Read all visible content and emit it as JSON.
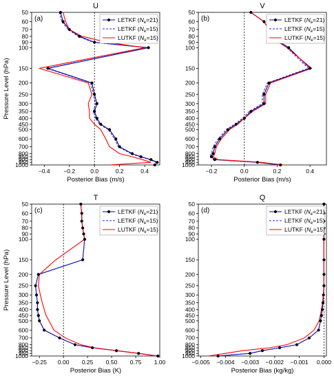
{
  "chart_data": [
    {
      "type": "line",
      "panel": "(a)",
      "title": "U",
      "xlabel": "Posterior Bias (m/s)",
      "ylabel": "Pressure Level (hPa)",
      "xlim": [
        -0.5,
        0.52
      ],
      "xticks": [
        -0.4,
        -0.2,
        0.0,
        0.2,
        0.4
      ],
      "xtick_labels": [
        "−0.4",
        "−0.2",
        "0.0",
        "0.2",
        "0.4"
      ],
      "y": [
        50,
        60,
        70,
        80,
        90,
        100,
        150,
        200,
        250,
        300,
        350,
        400,
        450,
        500,
        600,
        700,
        800,
        850,
        900,
        950,
        1000
      ],
      "ytick_labels": [
        "50",
        "60",
        "70",
        "80",
        "90",
        "100",
        "150",
        "200",
        "250",
        "300",
        "350",
        "400",
        "450",
        "500",
        "600",
        "700",
        "800",
        "850",
        "900",
        "950",
        "1000"
      ],
      "ylim": [
        50,
        1000
      ],
      "y_inverted": true,
      "zero_line": true,
      "legend_loc": "top-right",
      "series": [
        {
          "name": "LETKF (N_e=21)",
          "label_main": "LETKF (",
          "label_sub": "e",
          "label_rest": "=21)",
          "color": "#000080",
          "style": "solid",
          "marker": true,
          "values": [
            -0.27,
            -0.25,
            -0.2,
            -0.12,
            0.0,
            0.43,
            -0.37,
            -0.02,
            0.0,
            0.02,
            0.0,
            0.02,
            0.05,
            0.12,
            0.17,
            0.2,
            0.3,
            0.37,
            0.45,
            0.5,
            0.48
          ]
        },
        {
          "name": "LETKF (N_e=15)",
          "label_main": "LETKF (",
          "label_sub": "e",
          "label_rest": "=15)",
          "color": "#2222ee",
          "style": "dashed",
          "marker": false,
          "values": [
            -0.28,
            -0.26,
            -0.21,
            -0.13,
            -0.01,
            0.42,
            -0.38,
            -0.03,
            -0.01,
            0.01,
            -0.01,
            0.01,
            0.04,
            0.11,
            0.16,
            0.19,
            0.29,
            0.36,
            0.44,
            0.49,
            0.47
          ]
        },
        {
          "name": "LUTKF (N_e=15)",
          "label_main": "LUTKF (",
          "label_sub": "e",
          "label_rest": "=15)",
          "color": "#ff0000",
          "style": "solid",
          "marker": false,
          "values": [
            -0.25,
            -0.23,
            -0.2,
            -0.1,
            0.1,
            0.4,
            -0.44,
            -0.05,
            -0.02,
            -0.05,
            -0.04,
            -0.04,
            0.0,
            0.05,
            0.09,
            0.12,
            0.2,
            0.3,
            0.38,
            0.45,
            0.12
          ]
        }
      ]
    },
    {
      "type": "line",
      "panel": "(b)",
      "title": "V",
      "xlabel": "Posterior Bias (m/s)",
      "ylabel": "",
      "xlim": [
        -0.28,
        0.5
      ],
      "xticks": [
        -0.2,
        0.0,
        0.2,
        0.4
      ],
      "xtick_labels": [
        "−0.2",
        "0.0",
        "0.2",
        "0.4"
      ],
      "y": [
        50,
        60,
        70,
        80,
        90,
        100,
        150,
        200,
        250,
        300,
        350,
        400,
        450,
        500,
        600,
        700,
        800,
        850,
        900,
        950,
        1000
      ],
      "ytick_labels": [
        "50",
        "60",
        "70",
        "80",
        "90",
        "100",
        "150",
        "200",
        "250",
        "300",
        "350",
        "400",
        "450",
        "500",
        "600",
        "700",
        "800",
        "850",
        "900",
        "950",
        "1000"
      ],
      "ylim": [
        50,
        1000
      ],
      "y_inverted": true,
      "zero_line": true,
      "legend_loc": "top-right",
      "series": [
        {
          "name": "LETKF (N_e=21)",
          "label_main": "LETKF (",
          "label_sub": "e",
          "label_rest": "=21)",
          "color": "#000080",
          "style": "solid",
          "marker": true,
          "values": [
            0.04,
            0.12,
            0.15,
            0.2,
            0.22,
            0.27,
            0.4,
            0.15,
            0.12,
            0.12,
            0.04,
            0.0,
            -0.05,
            -0.1,
            -0.15,
            -0.18,
            -0.19,
            -0.2,
            -0.18,
            0.08,
            0.22
          ]
        },
        {
          "name": "LETKF (N_e=15)",
          "label_main": "LETKF (",
          "label_sub": "e",
          "label_rest": "=15)",
          "color": "#2222ee",
          "style": "dashed",
          "marker": false,
          "values": [
            0.04,
            0.12,
            0.15,
            0.2,
            0.22,
            0.26,
            0.39,
            0.14,
            0.11,
            0.11,
            0.03,
            -0.01,
            -0.06,
            -0.11,
            -0.16,
            -0.19,
            -0.2,
            -0.21,
            -0.19,
            0.07,
            0.21
          ]
        },
        {
          "name": "LUTKF (N_e=15)",
          "label_main": "LUTKF (",
          "label_sub": "e",
          "label_rest": "=15)",
          "color": "#ff0000",
          "style": "solid",
          "marker": false,
          "values": [
            0.04,
            0.12,
            0.15,
            0.19,
            0.21,
            0.26,
            0.41,
            0.16,
            0.13,
            0.13,
            0.05,
            0.0,
            -0.04,
            -0.09,
            -0.14,
            -0.17,
            -0.18,
            -0.19,
            -0.16,
            0.1,
            0.24
          ]
        }
      ]
    },
    {
      "type": "line",
      "panel": "(c)",
      "title": "T",
      "xlabel": "Posterior Bias (K)",
      "ylabel": "Pressure Level (hPa)",
      "xlim": [
        -0.33,
        1.0
      ],
      "xticks": [
        -0.25,
        0.0,
        0.25,
        0.5,
        0.75,
        1.0
      ],
      "xtick_labels": [
        "−0.25",
        "0.00",
        "0.25",
        "0.50",
        "0.75",
        "1.00"
      ],
      "y": [
        50,
        60,
        70,
        80,
        90,
        100,
        150,
        200,
        250,
        300,
        350,
        400,
        450,
        500,
        600,
        700,
        800,
        850,
        900,
        950,
        1000
      ],
      "ytick_labels": [
        "50",
        "60",
        "70",
        "80",
        "90",
        "100",
        "150",
        "200",
        "250",
        "300",
        "350",
        "400",
        "450",
        "500",
        "600",
        "700",
        "800",
        "850",
        "900",
        "950",
        "1000"
      ],
      "ylim": [
        50,
        1000
      ],
      "y_inverted": true,
      "zero_line": true,
      "legend_loc": "top-right",
      "series": [
        {
          "name": "LETKF (N_e=21)",
          "label_main": "LETKF (",
          "label_sub": "e",
          "label_rest": "=21)",
          "color": "#000080",
          "style": "solid",
          "marker": true,
          "values": [
            0.18,
            0.19,
            0.19,
            0.2,
            0.21,
            0.22,
            0.2,
            -0.26,
            -0.29,
            -0.28,
            -0.27,
            -0.27,
            -0.26,
            -0.25,
            -0.2,
            -0.04,
            0.12,
            0.3,
            0.55,
            0.78,
            0.98
          ]
        },
        {
          "name": "LETKF (N_e=15)",
          "label_main": "LETKF (",
          "label_sub": "e",
          "label_rest": "=15)",
          "color": "#2222ee",
          "style": "dashed",
          "marker": false,
          "values": [
            0.18,
            0.19,
            0.19,
            0.2,
            0.21,
            0.22,
            0.2,
            -0.26,
            -0.29,
            -0.28,
            -0.27,
            -0.27,
            -0.26,
            -0.25,
            -0.2,
            -0.04,
            0.12,
            0.3,
            0.55,
            0.78,
            0.98
          ]
        },
        {
          "name": "LUTKF (N_e=15)",
          "label_main": "LUTKF (",
          "label_sub": "e",
          "label_rest": "=15)",
          "color": "#ff0000",
          "style": "solid",
          "marker": false,
          "values": [
            0.18,
            0.19,
            0.19,
            0.2,
            0.21,
            0.22,
            -0.08,
            -0.25,
            -0.26,
            -0.24,
            -0.22,
            -0.2,
            -0.18,
            -0.15,
            -0.1,
            0.02,
            0.18,
            0.32,
            0.55,
            0.78,
            0.96
          ]
        }
      ]
    },
    {
      "type": "line",
      "panel": "(d)",
      "title": "Q",
      "xlabel": "Posterior Bias (kg/kg)",
      "ylabel": "",
      "xlim": [
        -0.0051,
        0.0001
      ],
      "xticks": [
        -0.005,
        -0.004,
        -0.003,
        -0.002,
        -0.001,
        0.0
      ],
      "xtick_labels": [
        "−0.005",
        "−0.004",
        "−0.003",
        "−0.002",
        "−0.001",
        "0.000"
      ],
      "y": [
        50,
        60,
        70,
        80,
        90,
        100,
        150,
        200,
        250,
        300,
        350,
        400,
        450,
        500,
        600,
        700,
        800,
        850,
        900,
        950,
        1000
      ],
      "ytick_labels": [
        "50",
        "60",
        "70",
        "80",
        "90",
        "100",
        "150",
        "200",
        "250",
        "300",
        "350",
        "400",
        "450",
        "500",
        "600",
        "700",
        "800",
        "850",
        "900",
        "950",
        "1000"
      ],
      "ylim": [
        50,
        1000
      ],
      "y_inverted": true,
      "zero_line": true,
      "legend_loc": "top-right",
      "series": [
        {
          "name": "LETKF (N_e=21)",
          "label_main": "LETKF (",
          "label_sub": "e",
          "label_rest": "=21)",
          "color": "#000080",
          "style": "solid",
          "marker": true,
          "values": [
            0.0,
            0.0,
            0.0,
            0.0,
            0.0,
            0.0,
            0.0,
            0.0,
            0.0,
            -2e-05,
            -4e-05,
            -7e-05,
            -0.0001,
            -0.00014,
            -0.00022,
            -0.0006,
            -0.0011,
            -0.0018,
            -0.0025,
            -0.003,
            -0.0043
          ]
        },
        {
          "name": "LETKF (N_e=15)",
          "label_main": "LETKF (",
          "label_sub": "e",
          "label_rest": "=15)",
          "color": "#2222ee",
          "style": "dashed",
          "marker": false,
          "values": [
            0.0,
            0.0,
            0.0,
            0.0,
            0.0,
            0.0,
            0.0,
            0.0,
            0.0,
            -2e-05,
            -4e-05,
            -7e-05,
            -0.0001,
            -0.00014,
            -0.00022,
            -0.0006,
            -0.0011,
            -0.0018,
            -0.0025,
            -0.003,
            -0.0043
          ]
        },
        {
          "name": "LUTKF (N_e=15)",
          "label_main": "LUTKF (",
          "label_sub": "e",
          "label_rest": "=15)",
          "color": "#ff0000",
          "style": "solid",
          "marker": false,
          "values": [
            0.0,
            0.0,
            0.0,
            0.0,
            0.0,
            0.0,
            0.0,
            0.0,
            0.0,
            -3e-05,
            -6e-05,
            -0.0001,
            -0.00015,
            -0.0002,
            -0.0004,
            -0.0008,
            -0.0015,
            -0.0022,
            -0.0033,
            -0.004,
            -0.0047
          ]
        }
      ]
    }
  ]
}
